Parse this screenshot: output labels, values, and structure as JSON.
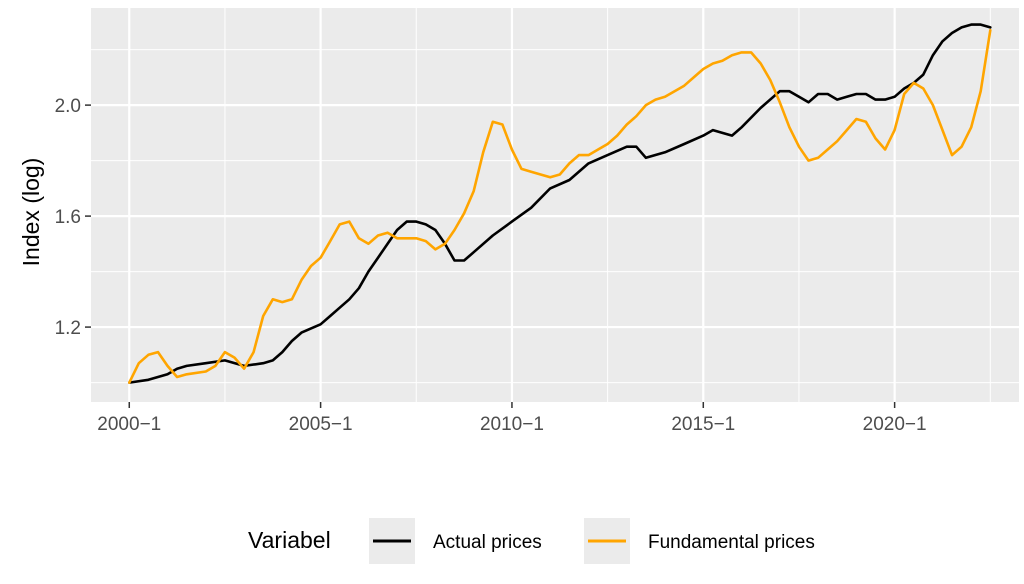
{
  "chart_data": {
    "type": "line",
    "ylabel": "Index (log)",
    "xlabel": "",
    "x_ticks": [
      "2000−1",
      "2005−1",
      "2010−1",
      "2015−1",
      "2020−1"
    ],
    "y_ticks": [
      "1.2",
      "1.6",
      "2.0"
    ],
    "xlim": [
      1999.0,
      2023.25
    ],
    "ylim": [
      0.93,
      2.35
    ],
    "grid": true,
    "legend": {
      "title": "Variabel",
      "position": "bottom"
    },
    "series": [
      {
        "name": "Actual prices",
        "color": "#000000",
        "x": [
          2000.0,
          2000.5,
          2001.0,
          2001.25,
          2001.5,
          2002.0,
          2002.5,
          2003.0,
          2003.5,
          2003.75,
          2004.0,
          2004.25,
          2004.5,
          2005.0,
          2005.25,
          2005.5,
          2005.75,
          2006.0,
          2006.25,
          2006.5,
          2006.75,
          2007.0,
          2007.25,
          2007.5,
          2007.75,
          2008.0,
          2008.25,
          2008.5,
          2008.75,
          2009.0,
          2009.5,
          2010.0,
          2010.5,
          2011.0,
          2011.5,
          2012.0,
          2012.5,
          2013.0,
          2013.25,
          2013.5,
          2014.0,
          2014.5,
          2015.0,
          2015.25,
          2015.5,
          2015.75,
          2016.0,
          2016.5,
          2017.0,
          2017.25,
          2017.5,
          2017.75,
          2018.0,
          2018.25,
          2018.5,
          2018.75,
          2019.0,
          2019.25,
          2019.5,
          2019.75,
          2020.0,
          2020.25,
          2020.5,
          2020.75,
          2021.0,
          2021.25,
          2021.5,
          2021.75,
          2022.0,
          2022.25,
          2022.5
        ],
        "values": [
          1.0,
          1.01,
          1.03,
          1.05,
          1.06,
          1.07,
          1.08,
          1.06,
          1.07,
          1.08,
          1.11,
          1.15,
          1.18,
          1.21,
          1.24,
          1.27,
          1.3,
          1.34,
          1.4,
          1.45,
          1.5,
          1.55,
          1.58,
          1.58,
          1.57,
          1.55,
          1.5,
          1.44,
          1.44,
          1.47,
          1.53,
          1.58,
          1.63,
          1.7,
          1.73,
          1.79,
          1.82,
          1.85,
          1.85,
          1.81,
          1.83,
          1.86,
          1.89,
          1.91,
          1.9,
          1.89,
          1.92,
          1.99,
          2.05,
          2.05,
          2.03,
          2.01,
          2.04,
          2.04,
          2.02,
          2.03,
          2.04,
          2.04,
          2.02,
          2.02,
          2.03,
          2.06,
          2.08,
          2.11,
          2.18,
          2.23,
          2.26,
          2.28,
          2.29,
          2.29,
          2.28
        ]
      },
      {
        "name": "Fundamental prices",
        "color": "#ffa500",
        "x": [
          2000.0,
          2000.25,
          2000.5,
          2000.75,
          2001.0,
          2001.25,
          2001.5,
          2002.0,
          2002.25,
          2002.5,
          2002.75,
          2003.0,
          2003.25,
          2003.5,
          2003.75,
          2004.0,
          2004.25,
          2004.5,
          2004.75,
          2005.0,
          2005.25,
          2005.5,
          2005.75,
          2006.0,
          2006.25,
          2006.5,
          2006.75,
          2007.0,
          2007.25,
          2007.5,
          2007.75,
          2008.0,
          2008.25,
          2008.5,
          2008.75,
          2009.0,
          2009.25,
          2009.5,
          2009.75,
          2010.0,
          2010.25,
          2010.5,
          2010.75,
          2011.0,
          2011.25,
          2011.5,
          2011.75,
          2012.0,
          2012.25,
          2012.5,
          2012.75,
          2013.0,
          2013.25,
          2013.5,
          2013.75,
          2014.0,
          2014.25,
          2014.5,
          2014.75,
          2015.0,
          2015.25,
          2015.5,
          2015.75,
          2016.0,
          2016.25,
          2016.5,
          2016.75,
          2017.0,
          2017.25,
          2017.5,
          2017.75,
          2018.0,
          2018.25,
          2018.5,
          2018.75,
          2019.0,
          2019.25,
          2019.5,
          2019.75,
          2020.0,
          2020.25,
          2020.5,
          2020.75,
          2021.0,
          2021.25,
          2021.5,
          2021.75,
          2022.0,
          2022.25,
          2022.5
        ],
        "values": [
          1.0,
          1.07,
          1.1,
          1.11,
          1.06,
          1.02,
          1.03,
          1.04,
          1.06,
          1.11,
          1.09,
          1.05,
          1.11,
          1.24,
          1.3,
          1.29,
          1.3,
          1.37,
          1.42,
          1.45,
          1.51,
          1.57,
          1.58,
          1.52,
          1.5,
          1.53,
          1.54,
          1.52,
          1.52,
          1.52,
          1.51,
          1.48,
          1.5,
          1.55,
          1.61,
          1.69,
          1.83,
          1.94,
          1.93,
          1.84,
          1.77,
          1.76,
          1.75,
          1.74,
          1.75,
          1.79,
          1.82,
          1.82,
          1.84,
          1.86,
          1.89,
          1.93,
          1.96,
          2.0,
          2.02,
          2.03,
          2.05,
          2.07,
          2.1,
          2.13,
          2.15,
          2.16,
          2.18,
          2.19,
          2.19,
          2.15,
          2.09,
          2.01,
          1.92,
          1.85,
          1.8,
          1.81,
          1.84,
          1.87,
          1.91,
          1.95,
          1.94,
          1.88,
          1.84,
          1.91,
          2.04,
          2.08,
          2.06,
          2.0,
          1.91,
          1.82,
          1.85,
          1.92,
          2.05,
          2.27
        ]
      }
    ]
  }
}
